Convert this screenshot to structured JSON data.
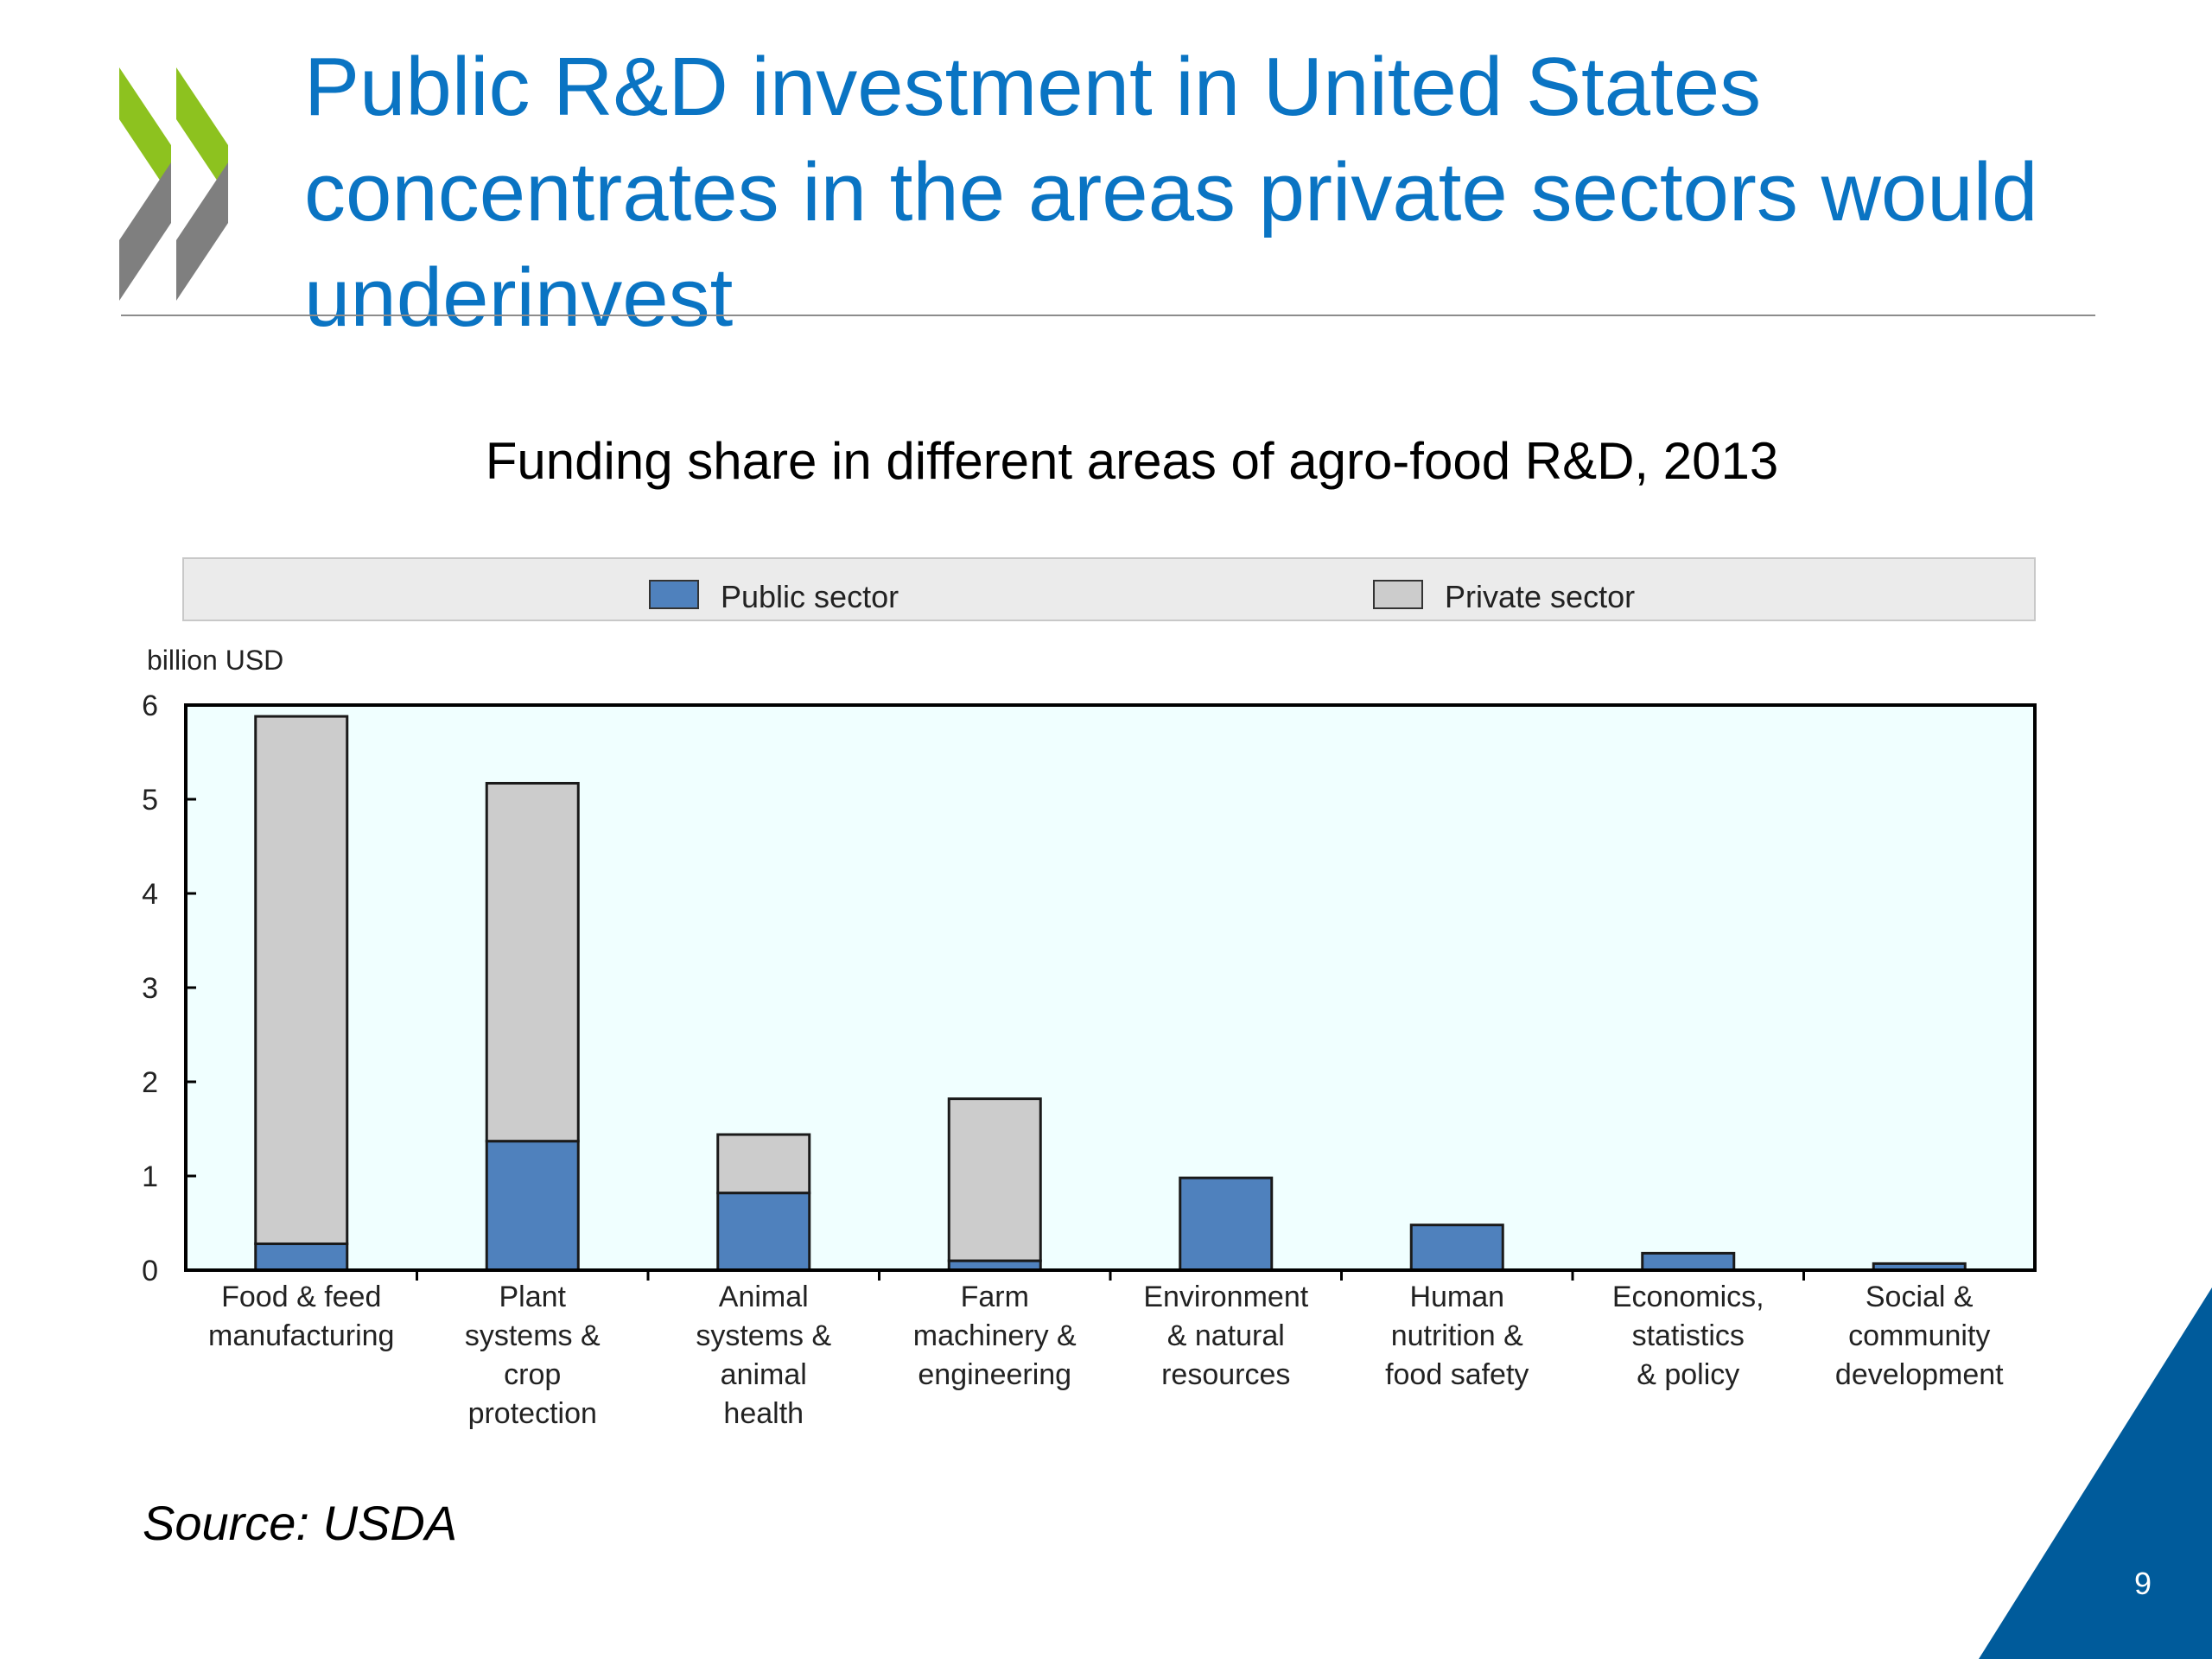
{
  "slide": {
    "title_lines": [
      "Public R&D investment in United States",
      "concentrates in the areas private sectors would",
      "underinvest"
    ],
    "source": "Source: USDA",
    "page_number": "9",
    "colors": {
      "title": "#0a74c3",
      "logo_green": "#8dc21f",
      "logo_gray": "#7f7f7f",
      "corner": "#005b9b"
    },
    "logo_icon": "oecd-chevrons-logo"
  },
  "chart_data": {
    "type": "bar",
    "stacked": true,
    "title": "Funding share in different areas of agro-food R&D, 2013",
    "ylabel": "billion USD",
    "xlabel": "",
    "ylim": [
      0,
      6
    ],
    "yticks": [
      0,
      1,
      2,
      3,
      4,
      5,
      6
    ],
    "grid": false,
    "legend_position": "top",
    "plot_background": "#f0ffff",
    "categories": [
      [
        "Food & feed",
        "manufacturing"
      ],
      [
        "Plant",
        "systems &",
        "crop",
        "protection"
      ],
      [
        "Animal",
        "systems &",
        "animal",
        "health"
      ],
      [
        "Farm",
        "machinery &",
        "engineering"
      ],
      [
        "Environment",
        "& natural",
        "resources"
      ],
      [
        "Human",
        "nutrition &",
        "food safety"
      ],
      [
        "Economics,",
        "statistics",
        "& policy"
      ],
      [
        "Social &",
        "community",
        "development"
      ]
    ],
    "series": [
      {
        "name": "Public sector",
        "color": "#4f81bd",
        "values": [
          0.28,
          1.37,
          0.82,
          0.1,
          0.98,
          0.48,
          0.18,
          0.07
        ]
      },
      {
        "name": "Private sector",
        "color": "#cccccc",
        "values": [
          5.6,
          3.8,
          0.62,
          1.72,
          0,
          0,
          0,
          0
        ]
      }
    ]
  }
}
